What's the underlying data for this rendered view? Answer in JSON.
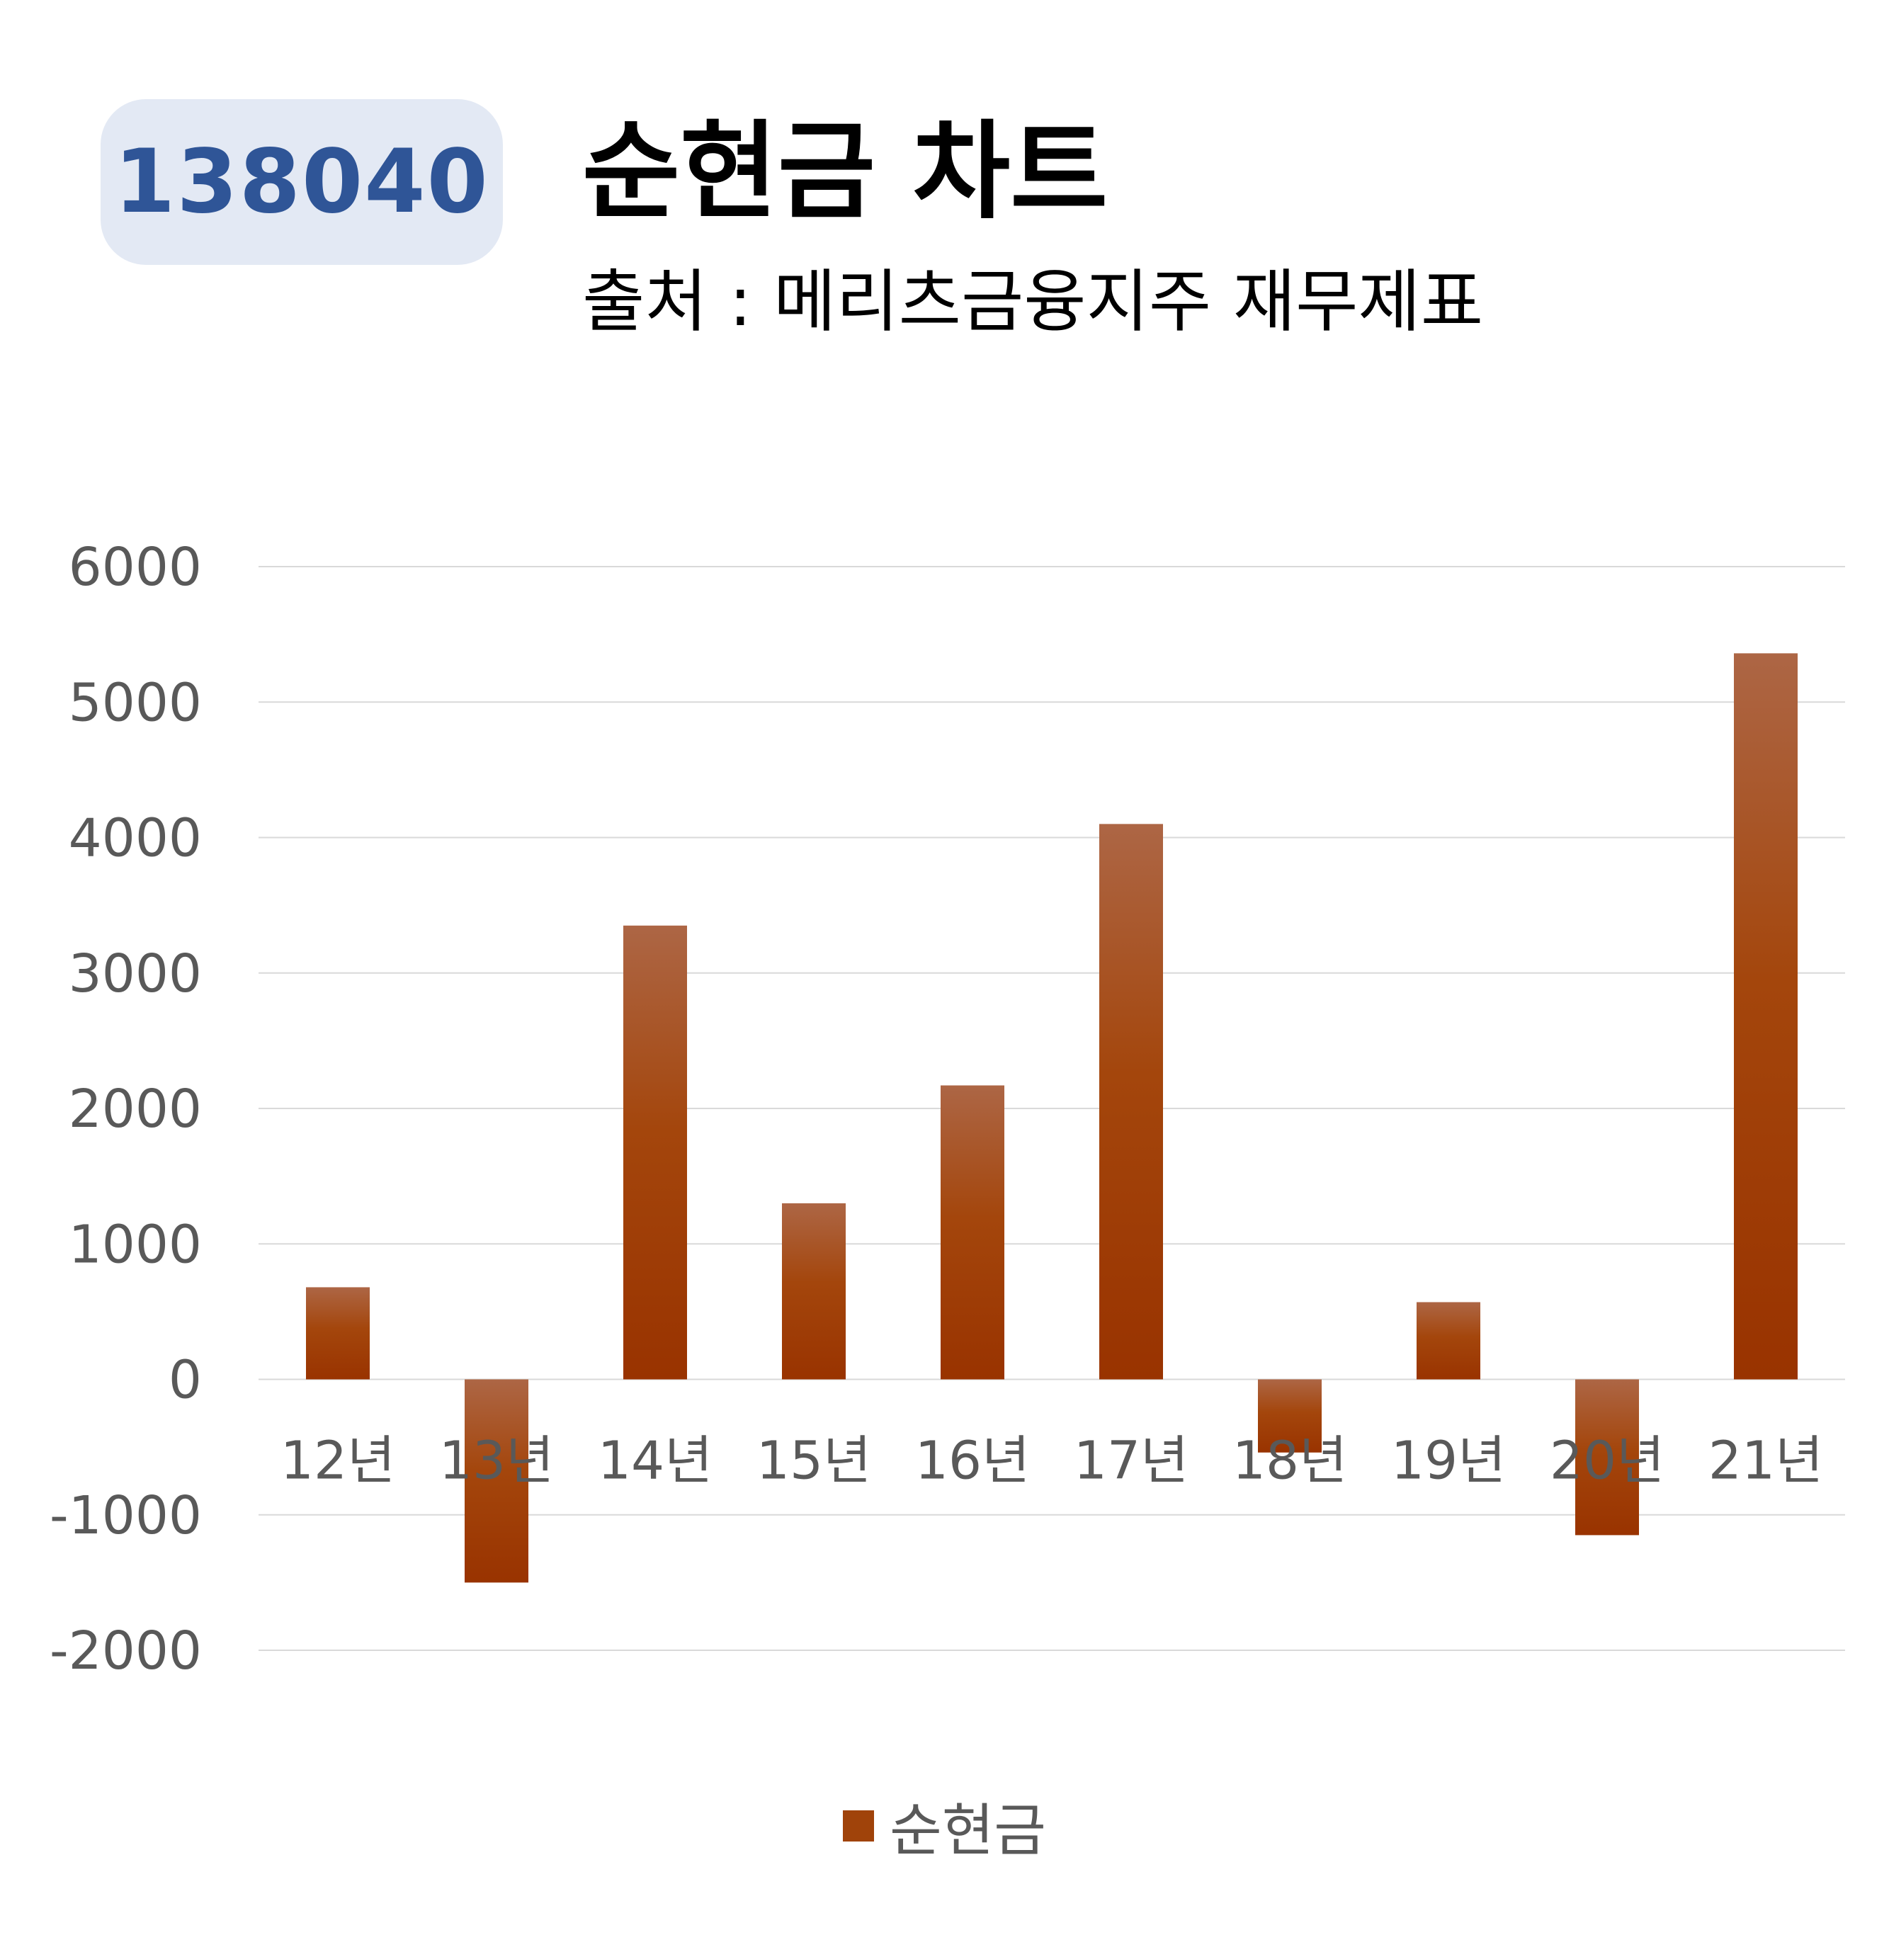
{
  "badge": "138040",
  "title": "순현금 차트",
  "subtitle": "출처 : 메리츠금융지주 재무제표",
  "colors": {
    "bar_top": "#ad6645",
    "bar_bottom": "#993300",
    "grid": "#d9d9d9",
    "badge_bg": "#e3e9f4",
    "badge_text": "#2f5597"
  },
  "chart_data": {
    "type": "bar",
    "categories": [
      "12년",
      "13년",
      "14년",
      "15년",
      "16년",
      "17년",
      "18년",
      "19년",
      "20년",
      "21년"
    ],
    "series": [
      {
        "name": "순현금",
        "values": [
          680,
          -1500,
          3350,
          1300,
          2170,
          4100,
          -540,
          570,
          -1150,
          5360
        ]
      }
    ],
    "ylim": [
      -2000,
      6000
    ],
    "yticks": [
      "6000",
      "5000",
      "4000",
      "3000",
      "2000",
      "1000",
      "0",
      "-1000",
      "-2000"
    ],
    "grid": true,
    "legend": "bottom"
  }
}
